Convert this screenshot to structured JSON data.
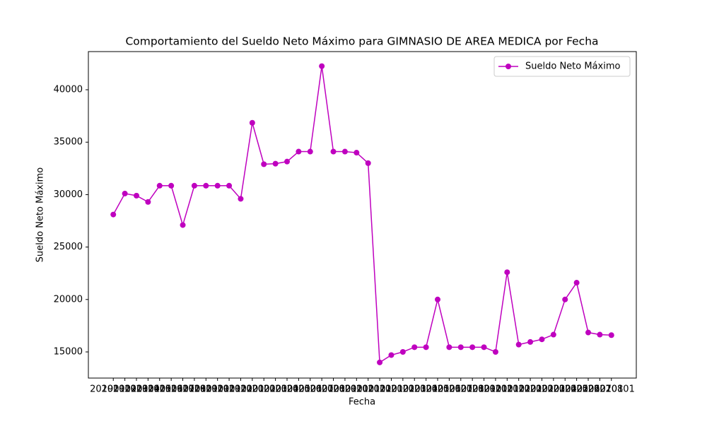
{
  "chart_data": {
    "type": "line",
    "title": "Comportamiento del Sueldo Neto Máximo para GIMNASIO DE AREA MEDICA por Fecha",
    "xlabel": "Fecha",
    "ylabel": "Sueldo Neto Máximo",
    "categories": [
      "20190101",
      "20190201",
      "20190301",
      "20190401",
      "20190501",
      "20190601",
      "20190701",
      "20190801",
      "20190901",
      "20191001",
      "20191101",
      "20191201",
      "20200101",
      "20200201",
      "20200301",
      "20200401",
      "20200501",
      "20200601",
      "20200701",
      "20200801",
      "20200901",
      "20201001",
      "20201101",
      "20201201",
      "20210101",
      "20210201",
      "20210301",
      "20210401",
      "20210501",
      "20210601",
      "20210701",
      "20210801",
      "20210901",
      "20211001",
      "20211101",
      "20211201",
      "20220101",
      "20220201",
      "20220301",
      "20220401",
      "20220501",
      "20220601",
      "20220701",
      "20220801"
    ],
    "series": [
      {
        "name": "Sueldo Neto Máximo",
        "color": "#bf00bf",
        "values": [
          28100,
          30100,
          29900,
          29300,
          30850,
          30850,
          27100,
          30850,
          30850,
          30850,
          30850,
          29600,
          36850,
          32900,
          32950,
          33150,
          34100,
          34100,
          42250,
          34100,
          34100,
          34000,
          33000,
          14000,
          14700,
          15000,
          15450,
          15450,
          20000,
          15450,
          15450,
          15450,
          15450,
          15000,
          22600,
          15700,
          15950,
          16200,
          16650,
          20000,
          21600,
          16850,
          16650,
          16600
        ]
      }
    ],
    "ylim": [
      12507,
      43639
    ],
    "yticks": [
      15000,
      20000,
      25000,
      30000,
      35000,
      40000
    ],
    "grid": false,
    "legend": "upper right"
  }
}
